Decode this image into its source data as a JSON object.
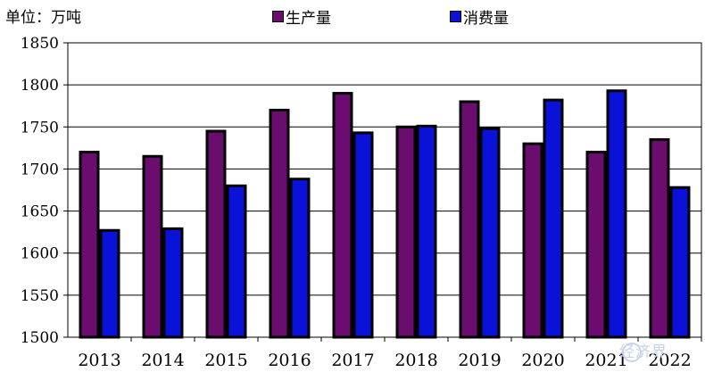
{
  "unit_label": "单位：万吨",
  "legend": [
    {
      "name": "生产量",
      "color": "#6a0d6e"
    },
    {
      "name": "消费量",
      "color": "#0a12d8"
    }
  ],
  "watermark": "经济界",
  "chart_data": {
    "type": "bar",
    "categories": [
      "2013",
      "2014",
      "2015",
      "2016",
      "2017",
      "2018",
      "2019",
      "2020",
      "2021",
      "2022"
    ],
    "series": [
      {
        "name": "生产量",
        "color": "#6a0d6e",
        "values": [
          1720,
          1715,
          1745,
          1770,
          1790,
          1750,
          1780,
          1730,
          1720,
          1735
        ]
      },
      {
        "name": "消费量",
        "color": "#0a12d8",
        "values": [
          1627,
          1629,
          1680,
          1688,
          1743,
          1751,
          1748,
          1782,
          1793,
          1678
        ]
      }
    ],
    "ylim": [
      1500,
      1850
    ],
    "yticks": [
      1500,
      1550,
      1600,
      1650,
      1700,
      1750,
      1800,
      1850
    ],
    "grid": true,
    "legend_position": "top"
  }
}
